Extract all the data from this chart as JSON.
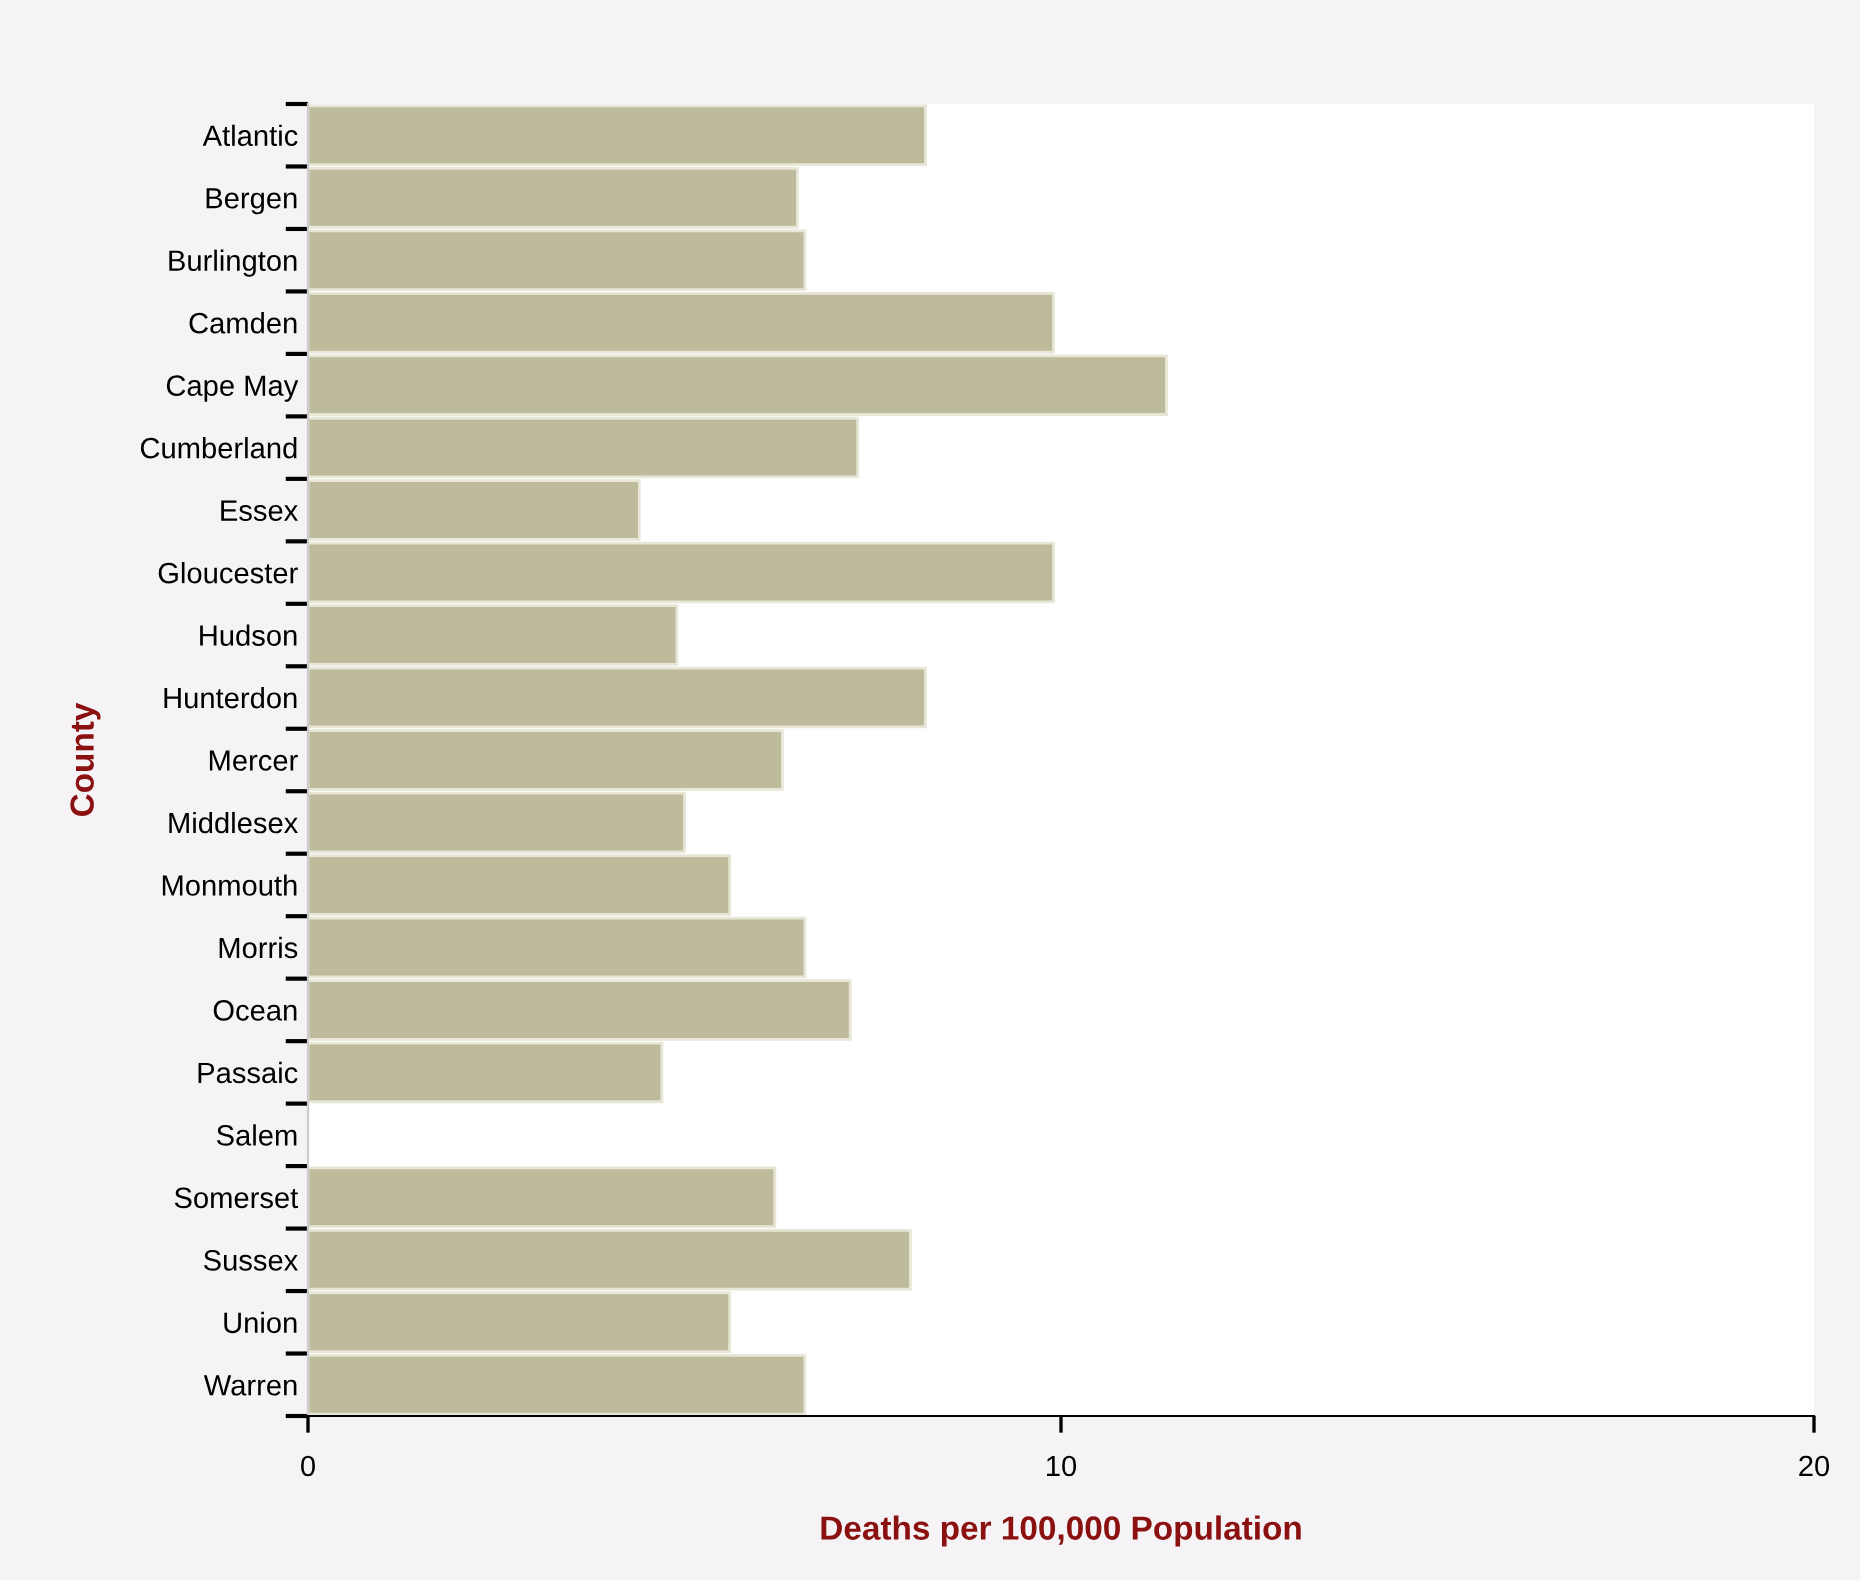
{
  "chart_data": {
    "type": "bar",
    "orientation": "horizontal",
    "xlabel": "Deaths per 100,000 Population",
    "ylabel": "County",
    "categories": [
      "Atlantic",
      "Bergen",
      "Burlington",
      "Camden",
      "Cape May",
      "Cumberland",
      "Essex",
      "Gloucester",
      "Hudson",
      "Hunterdon",
      "Mercer",
      "Middlesex",
      "Monmouth",
      "Morris",
      "Ocean",
      "Passaic",
      "Salem",
      "Somerset",
      "Sussex",
      "Union",
      "Warren"
    ],
    "values": [
      8.2,
      6.5,
      6.6,
      9.9,
      11.4,
      7.3,
      4.4,
      9.9,
      4.9,
      8.2,
      6.3,
      5.0,
      5.6,
      6.6,
      7.2,
      4.7,
      null,
      6.2,
      8.0,
      5.6,
      6.6
    ],
    "color": "#bdbb9c",
    "xlim": [
      0,
      20
    ],
    "xticks": [
      0,
      10,
      20
    ],
    "grid": false
  }
}
